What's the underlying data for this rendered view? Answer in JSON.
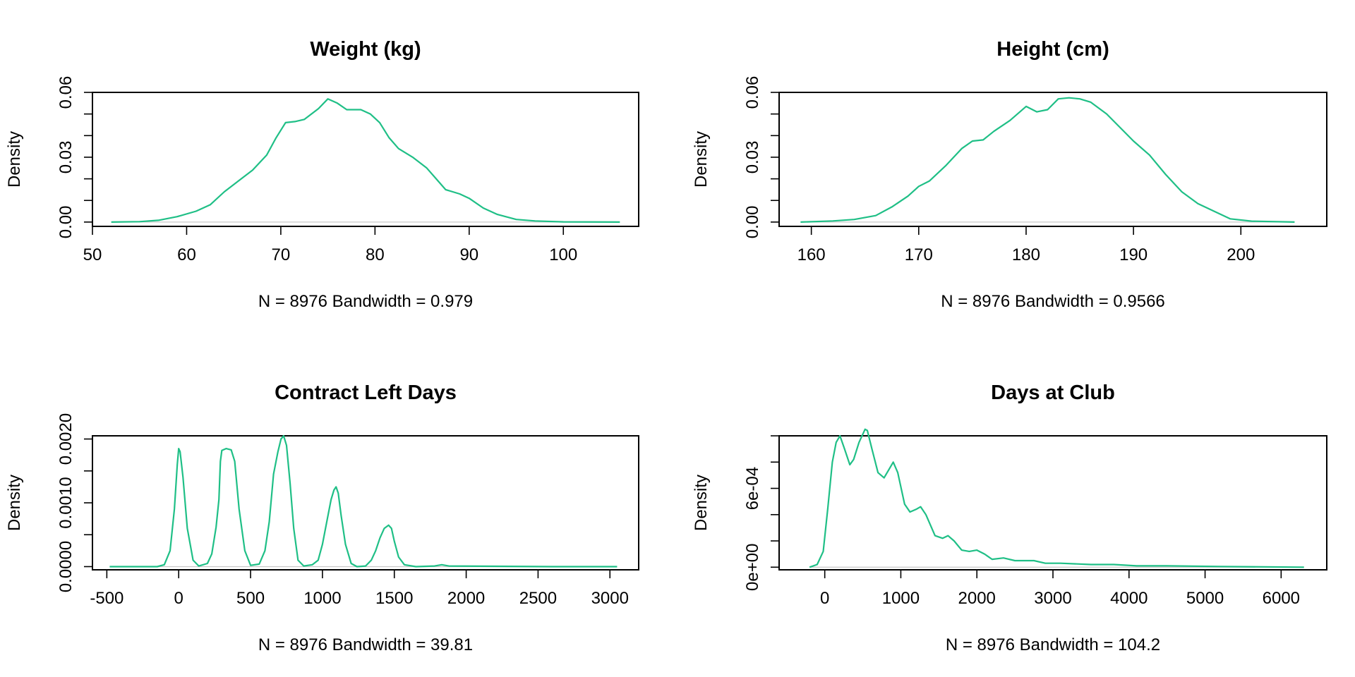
{
  "colors": {
    "curve": "#1fbf86",
    "baseline": "#c8c8c8"
  },
  "chart_data": [
    {
      "type": "line",
      "title": "Weight (kg)",
      "xlabel": "N = 8976   Bandwidth = 0.979",
      "ylabel": "Density",
      "xlim": [
        50,
        108
      ],
      "ylim": [
        -0.002,
        0.06
      ],
      "xticks": [
        50,
        60,
        70,
        80,
        90,
        100
      ],
      "xtick_labels": [
        "50",
        "60",
        "70",
        "80",
        "90",
        "100"
      ],
      "yticks": [
        0,
        0.01,
        0.02,
        0.03,
        0.04,
        0.05,
        0.06
      ],
      "ytick_labels": [
        "0.00",
        "",
        "",
        "0.03",
        "",
        "",
        "0.06"
      ],
      "series": [
        {
          "x": [
            52,
            55,
            57,
            59,
            61,
            62.5,
            64,
            65.5,
            67,
            68.5,
            69.5,
            70.5,
            71.5,
            72.5,
            74,
            75,
            76,
            77,
            78.5,
            79.5,
            80.5,
            81.5,
            82.5,
            84,
            85.5,
            86.5,
            87.5,
            89,
            90,
            91.5,
            93,
            95,
            97,
            100,
            106
          ],
          "y": [
            0.0,
            0.0002,
            0.0008,
            0.0025,
            0.005,
            0.008,
            0.014,
            0.019,
            0.024,
            0.031,
            0.039,
            0.046,
            0.0465,
            0.0475,
            0.0525,
            0.057,
            0.055,
            0.052,
            0.052,
            0.05,
            0.046,
            0.039,
            0.034,
            0.03,
            0.025,
            0.02,
            0.015,
            0.013,
            0.011,
            0.0065,
            0.0035,
            0.0012,
            0.0005,
            0.0001,
            0.0
          ]
        }
      ]
    },
    {
      "type": "line",
      "title": "Height (cm)",
      "xlabel": "N = 8976   Bandwidth = 0.9566",
      "ylabel": "Density",
      "xlim": [
        157,
        208
      ],
      "ylim": [
        -0.002,
        0.06
      ],
      "xticks": [
        160,
        170,
        180,
        190,
        200
      ],
      "xtick_labels": [
        "160",
        "170",
        "180",
        "190",
        "200"
      ],
      "yticks": [
        0,
        0.01,
        0.02,
        0.03,
        0.04,
        0.05,
        0.06
      ],
      "ytick_labels": [
        "0.00",
        "",
        "",
        "0.03",
        "",
        "",
        "0.06"
      ],
      "series": [
        {
          "x": [
            159,
            162,
            164,
            166,
            167.5,
            169,
            170,
            171,
            172.5,
            174,
            175,
            176,
            177,
            178.5,
            180,
            181,
            182,
            183,
            184,
            185,
            186,
            187.5,
            189,
            190,
            191.5,
            193,
            194.5,
            196,
            197.5,
            199,
            201,
            205
          ],
          "y": [
            0.0,
            0.0005,
            0.0012,
            0.003,
            0.007,
            0.012,
            0.0165,
            0.019,
            0.026,
            0.034,
            0.0375,
            0.038,
            0.042,
            0.047,
            0.0535,
            0.051,
            0.052,
            0.057,
            0.0575,
            0.057,
            0.0555,
            0.05,
            0.0425,
            0.0375,
            0.031,
            0.022,
            0.014,
            0.0085,
            0.005,
            0.0015,
            0.0004,
            0.0
          ]
        }
      ]
    },
    {
      "type": "line",
      "title": "Contract Left Days",
      "xlabel": "N = 8976   Bandwidth = 39.81",
      "ylabel": "Density",
      "xlim": [
        -600,
        3200
      ],
      "ylim": [
        -5e-05,
        0.00205
      ],
      "xticks": [
        -500,
        0,
        500,
        1000,
        1500,
        2000,
        2500,
        3000
      ],
      "xtick_labels": [
        "-500",
        "0",
        "500",
        "1000",
        "1500",
        "2000",
        "2500",
        "3000"
      ],
      "yticks": [
        0,
        0.0005,
        0.001,
        0.0015,
        0.002
      ],
      "ytick_labels": [
        "0.0000",
        "",
        "0.0010",
        "",
        "0.0020"
      ],
      "series": [
        {
          "x": [
            -480,
            -150,
            -100,
            -60,
            -30,
            -10,
            0,
            10,
            30,
            60,
            100,
            140,
            200,
            230,
            260,
            280,
            290,
            300,
            330,
            365,
            390,
            420,
            460,
            500,
            560,
            600,
            630,
            660,
            690,
            712,
            730,
            750,
            775,
            800,
            830,
            870,
            930,
            970,
            1000,
            1030,
            1060,
            1080,
            1095,
            1110,
            1130,
            1160,
            1200,
            1240,
            1300,
            1340,
            1370,
            1400,
            1430,
            1460,
            1480,
            1500,
            1530,
            1570,
            1650,
            1780,
            1830,
            1880,
            2200,
            2600,
            3050
          ],
          "y": [
            0.0,
            0.0,
            3e-05,
            0.00025,
            0.0009,
            0.0016,
            0.00185,
            0.0018,
            0.0014,
            0.0006,
            0.0001,
            1e-05,
            5e-05,
            0.0002,
            0.00062,
            0.00105,
            0.00165,
            0.00182,
            0.00185,
            0.00183,
            0.00165,
            0.0009,
            0.00025,
            2e-05,
            4e-05,
            0.00025,
            0.0007,
            0.00145,
            0.0018,
            0.002,
            0.00205,
            0.0019,
            0.0013,
            0.0006,
            0.0001,
            1e-05,
            3e-05,
            0.0001,
            0.00035,
            0.0007,
            0.00105,
            0.0012,
            0.00125,
            0.00115,
            0.0008,
            0.00035,
            5e-05,
            0.0,
            1e-05,
            0.0001,
            0.00025,
            0.00045,
            0.0006,
            0.00065,
            0.0006,
            0.0004,
            0.00015,
            3e-05,
            0.0,
            1e-05,
            3e-05,
            1e-05,
            5e-06,
            0.0,
            0.0
          ]
        }
      ]
    },
    {
      "type": "line",
      "title": "Days at Club",
      "xlabel": "N = 8976   Bandwidth = 104.2",
      "ylabel": "Density",
      "xlim": [
        -600,
        6600
      ],
      "ylim": [
        -2e-05,
        0.001
      ],
      "xticks": [
        0,
        1000,
        2000,
        3000,
        4000,
        5000,
        6000
      ],
      "xtick_labels": [
        "0",
        "1000",
        "2000",
        "3000",
        "4000",
        "5000",
        "6000"
      ],
      "yticks": [
        0,
        0.0002,
        0.0004,
        0.0006,
        0.0008,
        0.001
      ],
      "ytick_labels": [
        "0e+00",
        "",
        "",
        "6e-04",
        "",
        ""
      ],
      "series": [
        {
          "x": [
            -200,
            -100,
            -20,
            40,
            100,
            150,
            200,
            260,
            330,
            380,
            450,
            530,
            560,
            620,
            700,
            780,
            850,
            900,
            960,
            1050,
            1120,
            1200,
            1260,
            1330,
            1450,
            1550,
            1620,
            1700,
            1800,
            1900,
            2000,
            2100,
            2200,
            2350,
            2500,
            2750,
            2900,
            3100,
            3500,
            3800,
            4100,
            4500,
            5200,
            6300
          ],
          "y": [
            0.0,
            2e-05,
            0.00012,
            0.00045,
            0.0008,
            0.00095,
            0.001,
            0.0009,
            0.00078,
            0.00082,
            0.00095,
            0.00105,
            0.00104,
            0.0009,
            0.00072,
            0.00068,
            0.00075,
            0.0008,
            0.00072,
            0.00048,
            0.00042,
            0.00044,
            0.00046,
            0.0004,
            0.00024,
            0.00022,
            0.00024,
            0.0002,
            0.00013,
            0.00012,
            0.00013,
            0.0001,
            6e-05,
            7e-05,
            5e-05,
            5e-05,
            3e-05,
            3e-05,
            2e-05,
            2e-05,
            1e-05,
            1e-05,
            5e-06,
            0.0
          ]
        }
      ]
    }
  ]
}
